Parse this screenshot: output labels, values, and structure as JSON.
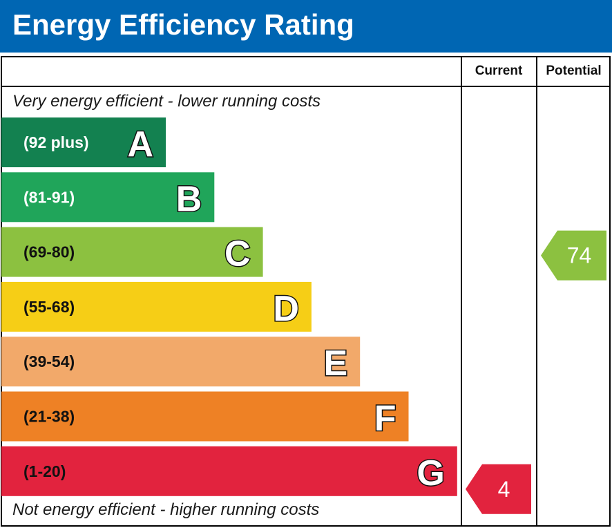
{
  "header": {
    "title": "Energy Efficiency Rating"
  },
  "columns": {
    "current": "Current",
    "potential": "Potential"
  },
  "chart_data": {
    "type": "bar",
    "title": "Energy Efficiency Rating",
    "top_note": "Very energy efficient - lower running costs",
    "bottom_note": "Not energy efficient - higher running costs",
    "bands": [
      {
        "letter": "A",
        "range": "(92 plus)",
        "rank": 1,
        "color": "#138150",
        "text_color": "#ffffff"
      },
      {
        "letter": "B",
        "range": "(81-91)",
        "rank": 2,
        "color": "#20a55a",
        "text_color": "#ffffff"
      },
      {
        "letter": "C",
        "range": "(69-80)",
        "rank": 3,
        "color": "#8cc140",
        "text_color": "#111111"
      },
      {
        "letter": "D",
        "range": "(55-68)",
        "rank": 4,
        "color": "#f6ce16",
        "text_color": "#111111"
      },
      {
        "letter": "E",
        "range": "(39-54)",
        "rank": 5,
        "color": "#f2a96a",
        "text_color": "#111111"
      },
      {
        "letter": "F",
        "range": "(21-38)",
        "rank": 6,
        "color": "#ee8125",
        "text_color": "#111111"
      },
      {
        "letter": "G",
        "range": "(1-20)",
        "rank": 7,
        "color": "#e2233e",
        "text_color": "#111111"
      }
    ],
    "current": {
      "value": "4",
      "band": "G",
      "color": "#e2233e"
    },
    "potential": {
      "value": "74",
      "band": "C",
      "color": "#8cc140"
    }
  }
}
